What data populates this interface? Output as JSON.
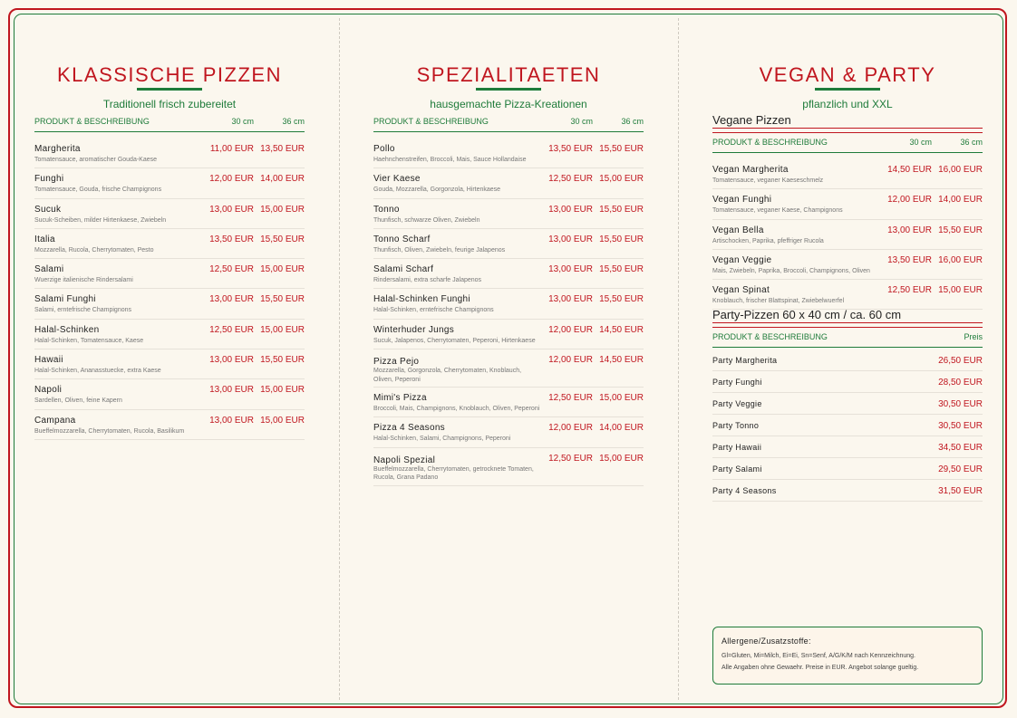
{
  "columns": [
    {
      "title": "KLASSISCHE PIZZEN",
      "subtitle": "Traditionell frisch zubereitet",
      "header": {
        "product": "PRODUKT & BESCHREIBUNG",
        "size_30": "30 cm",
        "size_36": "36 cm"
      },
      "items": [
        {
          "name": "Margherita",
          "desc": "Tomatensauce, aromatischer Gouda-Kaese",
          "p30": "11,00 EUR",
          "p36": "13,50 EUR"
        },
        {
          "name": "Funghi",
          "desc": "Tomatensauce, Gouda, frische Champignons",
          "p30": "12,00 EUR",
          "p36": "14,00 EUR"
        },
        {
          "name": "Sucuk",
          "desc": "Sucuk-Scheiben, milder Hirtenkaese, Zwiebeln",
          "p30": "13,00 EUR",
          "p36": "15,00 EUR"
        },
        {
          "name": "Italia",
          "desc": "Mozzarella, Rucola, Cherrytomaten, Pesto",
          "p30": "13,50 EUR",
          "p36": "15,50 EUR"
        },
        {
          "name": "Salami",
          "desc": "Wuerzige italienische Rindersalami",
          "p30": "12,50 EUR",
          "p36": "15,00 EUR"
        },
        {
          "name": "Salami Funghi",
          "desc": "Salami, erntefrische Champignons",
          "p30": "13,00 EUR",
          "p36": "15,50 EUR"
        },
        {
          "name": "Halal-Schinken",
          "desc": "Halal-Schinken, Tomatensauce, Kaese",
          "p30": "12,50 EUR",
          "p36": "15,00 EUR"
        },
        {
          "name": "Hawaii",
          "desc": "Halal-Schinken, Ananasstuecke, extra Kaese",
          "p30": "13,00 EUR",
          "p36": "15,50 EUR"
        },
        {
          "name": "Napoli",
          "desc": "Sardellen, Oliven, feine Kapern",
          "p30": "13,00 EUR",
          "p36": "15,00 EUR"
        },
        {
          "name": "Campana",
          "desc": "Bueffelmozzarella, Cherrytomaten, Rucola, Basilikum",
          "p30": "13,00 EUR",
          "p36": "15,00 EUR"
        }
      ]
    },
    {
      "title": "SPEZIALITAETEN",
      "subtitle": "hausgemachte Pizza-Kreationen",
      "header": {
        "product": "PRODUKT & BESCHREIBUNG",
        "size_30": "30 cm",
        "size_36": "36 cm"
      },
      "items": [
        {
          "name": "Pollo",
          "desc": "Haehnchenstreifen, Broccoli, Mais, Sauce Hollandaise",
          "p30": "13,50 EUR",
          "p36": "15,50 EUR"
        },
        {
          "name": "Vier Kaese",
          "desc": "Gouda, Mozzarella, Gorgonzola, Hirtenkaese",
          "p30": "12,50 EUR",
          "p36": "15,00 EUR"
        },
        {
          "name": "Tonno",
          "desc": "Thunfisch, schwarze Oliven, Zwiebeln",
          "p30": "13,00 EUR",
          "p36": "15,50 EUR"
        },
        {
          "name": "Tonno Scharf",
          "desc": "Thunfisch, Oliven, Zwiebeln, feurige Jalapenos",
          "p30": "13,00 EUR",
          "p36": "15,50 EUR"
        },
        {
          "name": "Salami Scharf",
          "desc": "Rindersalami, extra scharfe Jalapenos",
          "p30": "13,00 EUR",
          "p36": "15,50 EUR"
        },
        {
          "name": "Halal-Schinken Funghi",
          "desc": "Halal-Schinken, erntefrische Champignons",
          "p30": "13,00 EUR",
          "p36": "15,50 EUR"
        },
        {
          "name": "Winterhuder Jungs",
          "desc": "Sucuk, Jalapenos, Cherrytomaten, Peperoni, Hirtenkaese",
          "p30": "12,00 EUR",
          "p36": "14,50 EUR"
        },
        {
          "name": "Pizza Pejo",
          "desc": "Mozzarella, Gorgonzola, Cherrytomaten, Knoblauch, Oliven, Peperoni",
          "p30": "12,00 EUR",
          "p36": "14,50 EUR"
        },
        {
          "name": "Mimi's Pizza",
          "desc": "Broccoli, Mais, Champignons, Knoblauch, Oliven, Peperoni",
          "p30": "12,50 EUR",
          "p36": "15,00 EUR"
        },
        {
          "name": "Pizza 4 Seasons",
          "desc": "Halal-Schinken, Salami, Champignons, Peperoni",
          "p30": "12,00 EUR",
          "p36": "14,00 EUR"
        },
        {
          "name": "Napoli Spezial",
          "desc": "Bueffelmozzarella, Cherrytomaten, getrocknete Tomaten, Rucola, Grana Padano",
          "p30": "12,50 EUR",
          "p36": "15,00 EUR"
        }
      ]
    }
  ],
  "vegan_party": {
    "title": "VEGAN & PARTY",
    "subtitle": "pflanzlich und XXL",
    "vegan_section": "Vegane Pizzen",
    "vegan_header": {
      "product": "PRODUKT & BESCHREIBUNG",
      "size_30": "30 cm",
      "size_36": "36 cm"
    },
    "vegan_items": [
      {
        "name": "Vegan Margherita",
        "desc": "Tomatensauce, veganer Kaeseschmelz",
        "p30": "14,50 EUR",
        "p36": "16,00 EUR"
      },
      {
        "name": "Vegan Funghi",
        "desc": "Tomatensauce, veganer Kaese, Champignons",
        "p30": "12,00 EUR",
        "p36": "14,00 EUR"
      },
      {
        "name": "Vegan Bella",
        "desc": "Artischocken, Paprika, pfeffriger Rucola",
        "p30": "13,00 EUR",
        "p36": "15,50 EUR"
      },
      {
        "name": "Vegan Veggie",
        "desc": "Mais, Zwiebeln, Paprika, Broccoli, Champignons, Oliven",
        "p30": "13,50 EUR",
        "p36": "16,00 EUR"
      },
      {
        "name": "Vegan Spinat",
        "desc": "Knoblauch, frischer Blattspinat, Zwiebelwuerfel",
        "p30": "12,50 EUR",
        "p36": "15,00 EUR"
      }
    ],
    "party_section": "Party-Pizzen 60 x 40 cm / ca. 60 cm",
    "party_header": {
      "product": "PRODUKT & BESCHREIBUNG",
      "price": "Preis"
    },
    "party_items": [
      {
        "name": "Party Margherita",
        "price": "26,50 EUR"
      },
      {
        "name": "Party Funghi",
        "price": "28,50 EUR"
      },
      {
        "name": "Party Veggie",
        "price": "30,50 EUR"
      },
      {
        "name": "Party Tonno",
        "price": "30,50 EUR"
      },
      {
        "name": "Party Hawaii",
        "price": "34,50 EUR"
      },
      {
        "name": "Party Salami",
        "price": "29,50 EUR"
      },
      {
        "name": "Party 4 Seasons",
        "price": "31,50 EUR"
      }
    ],
    "allergen": {
      "title": "Allergene/Zusatzstoffe:",
      "line1": "Gl=Gluten, Mi=Milch, Ei=Ei, Sn=Senf, A/G/K/M nach Kennzeichnung.",
      "line2": "Alle Angaben ohne Gewaehr. Preise in EUR. Angebot solange gueltig."
    }
  },
  "colors": {
    "accent_red": "#c0161f",
    "accent_green": "#1e7b3a",
    "paper": "#fbf7ee"
  }
}
